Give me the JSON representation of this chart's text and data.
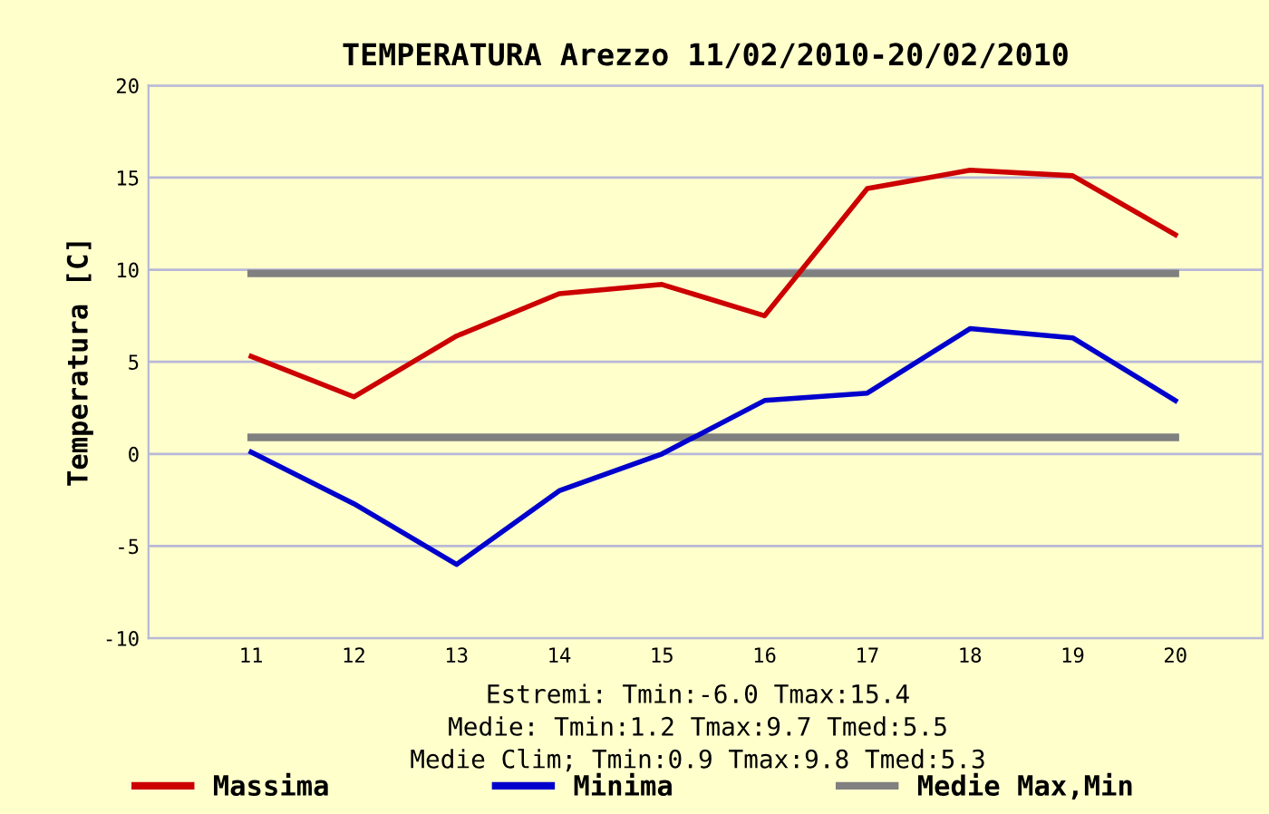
{
  "chart_data": {
    "type": "line",
    "title": "TEMPERATURA Arezzo 11/02/2010-20/02/2010",
    "ylabel": "Temperatura [C]",
    "x": [
      11,
      12,
      13,
      14,
      15,
      16,
      17,
      18,
      19,
      20
    ],
    "series": [
      {
        "name": "Massima",
        "color": "#cc0000",
        "values": [
          5.3,
          3.1,
          6.4,
          8.7,
          9.2,
          7.5,
          14.4,
          15.4,
          15.1,
          11.9
        ]
      },
      {
        "name": "Minima",
        "color": "#0000cc",
        "values": [
          0.1,
          -2.7,
          -6.0,
          -2.0,
          0.0,
          2.9,
          3.3,
          6.8,
          6.3,
          2.9
        ]
      }
    ],
    "ref_lines": [
      {
        "axis": "y",
        "value": 9.8,
        "label": "Medie Max,Min",
        "color": "#808080"
      },
      {
        "axis": "y",
        "value": 0.9,
        "label": null,
        "color": "#808080"
      }
    ],
    "xlim": [
      10,
      20.85
    ],
    "xticks": [
      11,
      12,
      13,
      14,
      15,
      16,
      17,
      18,
      19,
      20
    ],
    "ylim": [
      -10,
      20
    ],
    "yticks": [
      -10,
      -5,
      0,
      5,
      10,
      15,
      20
    ],
    "grid": "y",
    "legend": "bottom",
    "marker": "none",
    "line_style": "solid",
    "annotations": [
      "Estremi: Tmin:-6.0 Tmax:15.4",
      "Medie: Tmin:1.2 Tmax:9.7 Tmed:5.5",
      "Medie Clim; Tmin:0.9 Tmax:9.8 Tmed:5.3"
    ]
  }
}
